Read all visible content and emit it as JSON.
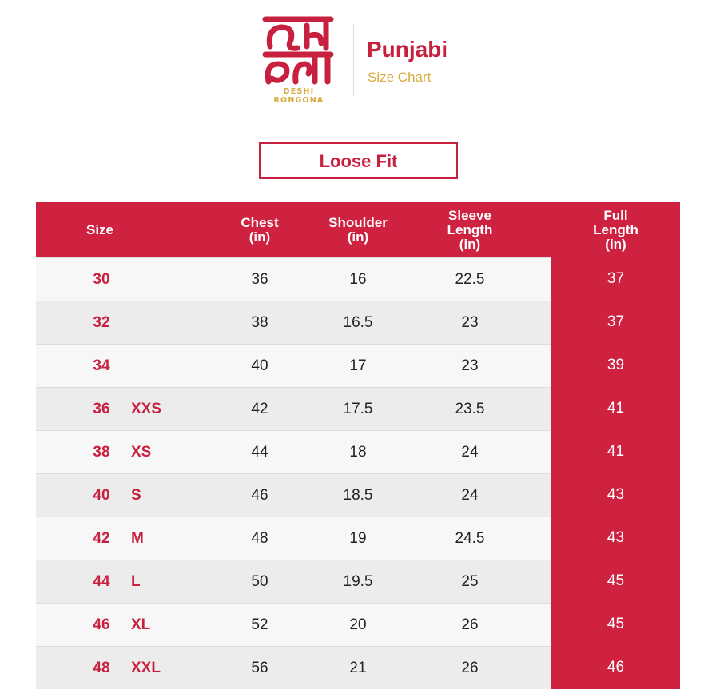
{
  "brand": {
    "logo_text": "DESHI RONGONA",
    "product": "Punjabi",
    "subtitle": "Size Chart"
  },
  "fit_label": "Loose Fit",
  "colors": {
    "primary": "#cf2140",
    "accent": "#d9a93a"
  },
  "table": {
    "headers": [
      "Size",
      "Chest\n(in)",
      "Shoulder\n(in)",
      "Sleeve\nLength\n(in)",
      "Full\nLength\n(in)"
    ],
    "rows": [
      {
        "size": "30",
        "letter": "",
        "chest": "36",
        "shoulder": "16",
        "sleeve": "22.5",
        "full": "37"
      },
      {
        "size": "32",
        "letter": "",
        "chest": "38",
        "shoulder": "16.5",
        "sleeve": "23",
        "full": "37"
      },
      {
        "size": "34",
        "letter": "",
        "chest": "40",
        "shoulder": "17",
        "sleeve": "23",
        "full": "39"
      },
      {
        "size": "36",
        "letter": "XXS",
        "chest": "42",
        "shoulder": "17.5",
        "sleeve": "23.5",
        "full": "41"
      },
      {
        "size": "38",
        "letter": "XS",
        "chest": "44",
        "shoulder": "18",
        "sleeve": "24",
        "full": "41"
      },
      {
        "size": "40",
        "letter": "S",
        "chest": "46",
        "shoulder": "18.5",
        "sleeve": "24",
        "full": "43"
      },
      {
        "size": "42",
        "letter": "M",
        "chest": "48",
        "shoulder": "19",
        "sleeve": "24.5",
        "full": "43"
      },
      {
        "size": "44",
        "letter": "L",
        "chest": "50",
        "shoulder": "19.5",
        "sleeve": "25",
        "full": "45"
      },
      {
        "size": "46",
        "letter": "XL",
        "chest": "52",
        "shoulder": "20",
        "sleeve": "26",
        "full": "45"
      },
      {
        "size": "48",
        "letter": "XXL",
        "chest": "56",
        "shoulder": "21",
        "sleeve": "26",
        "full": "46"
      }
    ]
  }
}
